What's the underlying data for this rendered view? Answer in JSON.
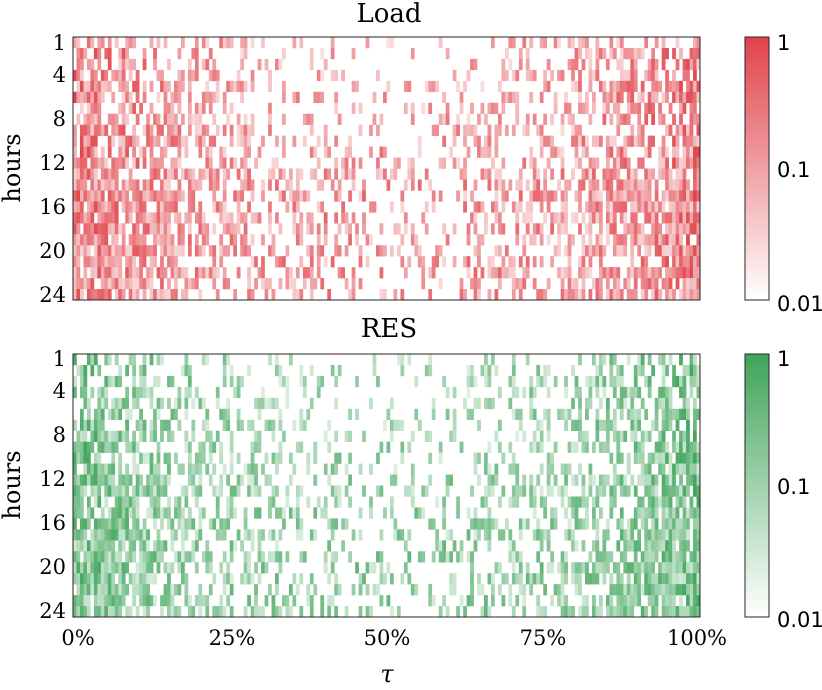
{
  "chart_data": [
    {
      "type": "heatmap",
      "title": "Load",
      "ylabel": "hours",
      "xlabel": "",
      "y_ticks": [
        "1",
        "4",
        "8",
        "12",
        "16",
        "20",
        "24"
      ],
      "y_range": [
        1,
        24
      ],
      "x_range": [
        0,
        100
      ],
      "x_ticks": [],
      "color": "#e0434a",
      "colorbar": {
        "scale": "log",
        "range": [
          0.01,
          1
        ],
        "ticks": [
          "1",
          "0.1",
          "0.01"
        ]
      },
      "rows": 24,
      "cols": 180,
      "seed": 11
    },
    {
      "type": "heatmap",
      "title": "RES",
      "ylabel": "hours",
      "xlabel": "τ",
      "y_ticks": [
        "1",
        "4",
        "8",
        "12",
        "16",
        "20",
        "24"
      ],
      "y_range": [
        1,
        24
      ],
      "x_range": [
        0,
        100
      ],
      "x_ticks": [
        "0%",
        "25%",
        "50%",
        "75%",
        "100%"
      ],
      "color": "#3fa45a",
      "colorbar": {
        "scale": "log",
        "range": [
          0.01,
          1
        ],
        "ticks": [
          "1",
          "0.1",
          "0.01"
        ]
      },
      "rows": 24,
      "cols": 180,
      "seed": 29
    }
  ]
}
